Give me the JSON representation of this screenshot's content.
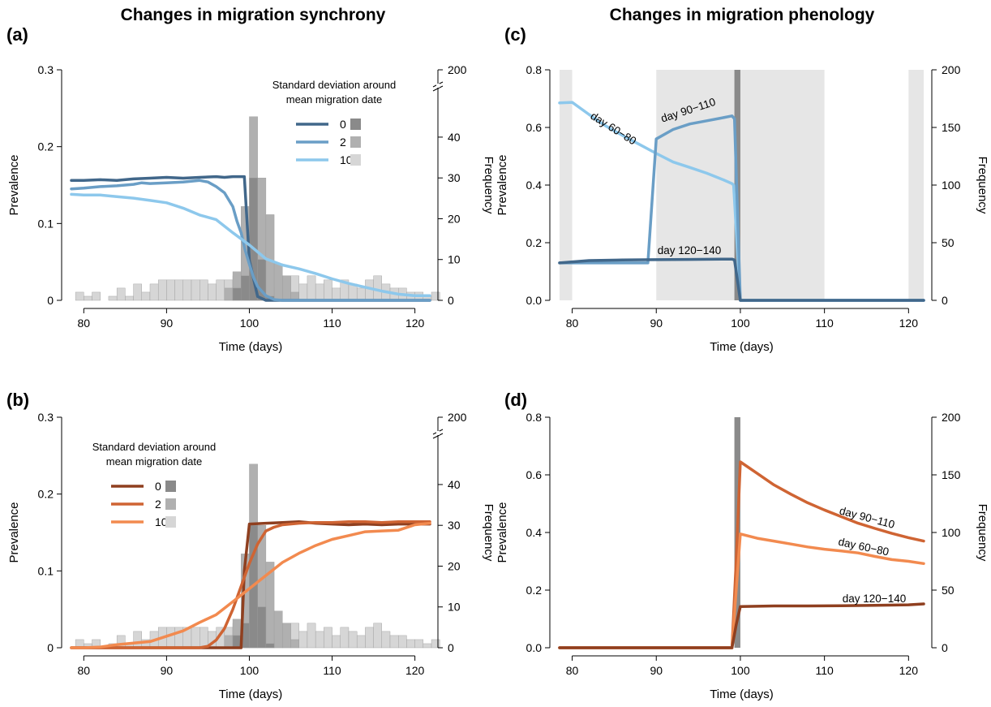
{
  "titles": {
    "left": "Changes in migration synchrony",
    "right": "Changes in migration phenology"
  },
  "colors": {
    "blue_dark": "#41678a",
    "blue_mid": "#6a9ec6",
    "blue_light": "#8dc8ec",
    "orange_dark": "#8f3f1f",
    "orange_mid": "#cf6433",
    "orange_light": "#f28a4f",
    "hist_dark": "#8a8a8a",
    "hist_mid": "#b0b0b0",
    "hist_light": "#d6d6d6",
    "shade": "#e6e6e6"
  },
  "chart_data": [
    {
      "id": "a",
      "panel_label": "(a)",
      "type": "line",
      "xlabel": "Time (days)",
      "ylabel": "Prevalence",
      "y2label": "Frequency",
      "xlim": [
        78.5,
        121.8
      ],
      "ylim": [
        0,
        0.3
      ],
      "xticks": [
        "80",
        "90",
        "100",
        "110",
        "120"
      ],
      "yticks": [
        "0",
        "0.1",
        "0.2",
        "0.3"
      ],
      "y2ticks": [
        "0",
        "10",
        "20",
        "30",
        "40",
        "200"
      ],
      "legend": {
        "title_line1": "Standard deviation around",
        "title_line2": "mean migration date",
        "entries": [
          "0",
          "2",
          "10"
        ]
      },
      "histograms": [
        {
          "name": "10",
          "values": [
            2,
            1,
            2,
            0,
            1,
            3,
            1,
            4,
            2,
            4,
            5,
            5,
            5,
            5,
            5,
            5,
            4,
            5,
            5,
            6,
            4,
            5,
            5,
            5,
            3,
            6,
            6,
            4,
            6,
            4,
            5,
            3,
            5,
            4,
            3,
            5,
            6,
            4,
            3,
            3,
            2,
            2,
            1,
            2
          ]
        },
        {
          "name": "2",
          "values": [
            0,
            0,
            0,
            0,
            0,
            0,
            0,
            0,
            0,
            0,
            0,
            0,
            0,
            0,
            0,
            0,
            0,
            0,
            3,
            7,
            23,
            45,
            30,
            21,
            9,
            6,
            2,
            0,
            0,
            0,
            0,
            0,
            0,
            0,
            0,
            0,
            0,
            0,
            0,
            0,
            0,
            0,
            0,
            0
          ]
        },
        {
          "name": "0",
          "values": [
            0,
            0,
            0,
            0,
            0,
            0,
            0,
            0,
            0,
            0,
            0,
            0,
            0,
            0,
            0,
            0,
            0,
            0,
            0,
            3,
            6,
            30,
            10,
            1,
            0,
            0,
            0,
            0,
            0,
            0,
            0,
            0,
            0,
            0,
            0,
            0,
            0,
            0,
            0,
            0,
            0,
            0,
            0,
            0
          ]
        }
      ],
      "series": [
        {
          "name": "0",
          "x": [
            78.5,
            80,
            82,
            84,
            86,
            88,
            90,
            92,
            94,
            96,
            97,
            98,
            99,
            99.4,
            100,
            101,
            102,
            103,
            104,
            121.8
          ],
          "y": [
            0.156,
            0.156,
            0.157,
            0.156,
            0.158,
            0.159,
            0.16,
            0.159,
            0.16,
            0.161,
            0.16,
            0.161,
            0.161,
            0.161,
            0.052,
            0.005,
            0,
            0,
            0,
            0
          ]
        },
        {
          "name": "2",
          "x": [
            78.5,
            80,
            82,
            84,
            86,
            87,
            88,
            90,
            92,
            94,
            95,
            96,
            97,
            98,
            98.5,
            99,
            99.5,
            100,
            100.5,
            101,
            102,
            103,
            104,
            121.8
          ],
          "y": [
            0.145,
            0.146,
            0.148,
            0.149,
            0.151,
            0.153,
            0.152,
            0.153,
            0.154,
            0.156,
            0.154,
            0.148,
            0.14,
            0.122,
            0.103,
            0.088,
            0.065,
            0.047,
            0.03,
            0.018,
            0.006,
            0.001,
            0,
            0
          ]
        },
        {
          "name": "10",
          "x": [
            78.5,
            80,
            82,
            84,
            86,
            88,
            90,
            92,
            94,
            96,
            98,
            100,
            102,
            104,
            106,
            108,
            110,
            112,
            114,
            116,
            118,
            120,
            121.8
          ],
          "y": [
            0.138,
            0.137,
            0.137,
            0.135,
            0.133,
            0.13,
            0.127,
            0.12,
            0.111,
            0.105,
            0.088,
            0.072,
            0.054,
            0.046,
            0.041,
            0.035,
            0.028,
            0.022,
            0.017,
            0.012,
            0.008,
            0.006,
            0.006
          ]
        }
      ]
    },
    {
      "id": "b",
      "panel_label": "(b)",
      "type": "line",
      "xlabel": "Time (days)",
      "ylabel": "Prevalence",
      "y2label": "Frequency",
      "xlim": [
        78.5,
        121.8
      ],
      "ylim": [
        0,
        0.3
      ],
      "xticks": [
        "80",
        "90",
        "100",
        "110",
        "120"
      ],
      "yticks": [
        "0",
        "0.1",
        "0.2",
        "0.3"
      ],
      "y2ticks": [
        "0",
        "10",
        "20",
        "30",
        "40",
        "200"
      ],
      "legend": {
        "title_line1": "Standard deviation around",
        "title_line2": "mean migration date",
        "entries": [
          "0",
          "2",
          "10"
        ]
      },
      "histograms": [
        {
          "name": "10",
          "values": [
            2,
            1,
            2,
            0,
            1,
            3,
            1,
            4,
            2,
            4,
            5,
            5,
            5,
            5,
            5,
            5,
            4,
            5,
            5,
            6,
            4,
            5,
            5,
            5,
            3,
            6,
            6,
            4,
            6,
            4,
            5,
            3,
            5,
            4,
            3,
            5,
            6,
            4,
            3,
            3,
            2,
            2,
            1,
            2
          ]
        },
        {
          "name": "2",
          "values": [
            0,
            0,
            0,
            0,
            0,
            0,
            0,
            0,
            0,
            0,
            0,
            0,
            0,
            0,
            0,
            0,
            0,
            0,
            3,
            7,
            23,
            45,
            30,
            21,
            9,
            6,
            2,
            0,
            0,
            0,
            0,
            0,
            0,
            0,
            0,
            0,
            0,
            0,
            0,
            0,
            0,
            0,
            0,
            0
          ]
        },
        {
          "name": "0",
          "values": [
            0,
            0,
            0,
            0,
            0,
            0,
            0,
            0,
            0,
            0,
            0,
            0,
            0,
            0,
            0,
            0,
            0,
            0,
            0,
            3,
            6,
            30,
            10,
            1,
            0,
            0,
            0,
            0,
            0,
            0,
            0,
            0,
            0,
            0,
            0,
            0,
            0,
            0,
            0,
            0,
            0,
            0,
            0,
            0
          ]
        }
      ],
      "series": [
        {
          "name": "0",
          "x": [
            78.5,
            99,
            99.4,
            100,
            102,
            104,
            106,
            108,
            110,
            112,
            114,
            116,
            118,
            120,
            121.8
          ],
          "y": [
            0,
            0,
            0.1,
            0.161,
            0.162,
            0.163,
            0.164,
            0.162,
            0.161,
            0.16,
            0.161,
            0.16,
            0.161,
            0.161,
            0.161
          ]
        },
        {
          "name": "2",
          "x": [
            78.5,
            94,
            95,
            96,
            97,
            98,
            99,
            100,
            101,
            102,
            103,
            104,
            106,
            108,
            110,
            112,
            114,
            116,
            118,
            120,
            121.8
          ],
          "y": [
            0,
            0,
            0.002,
            0.01,
            0.025,
            0.05,
            0.08,
            0.11,
            0.135,
            0.152,
            0.157,
            0.16,
            0.162,
            0.163,
            0.163,
            0.164,
            0.164,
            0.163,
            0.164,
            0.164,
            0.164
          ]
        },
        {
          "name": "10",
          "x": [
            78.5,
            80,
            82,
            84,
            86,
            88,
            90,
            92,
            94,
            96,
            98,
            100,
            102,
            104,
            106,
            108,
            110,
            112,
            114,
            116,
            118,
            120,
            121.8
          ],
          "y": [
            0,
            0,
            0.001,
            0.004,
            0.006,
            0.008,
            0.015,
            0.022,
            0.033,
            0.043,
            0.06,
            0.077,
            0.094,
            0.111,
            0.123,
            0.133,
            0.141,
            0.146,
            0.151,
            0.152,
            0.153,
            0.16,
            0.162
          ]
        }
      ]
    },
    {
      "id": "c",
      "panel_label": "(c)",
      "type": "line",
      "xlabel": "Time (days)",
      "ylabel": "Prevalence",
      "y2label": "Frequency",
      "xlim": [
        78.5,
        121.8
      ],
      "ylim": [
        0,
        0.8
      ],
      "xticks": [
        "80",
        "90",
        "100",
        "110",
        "120"
      ],
      "yticks": [
        "0.0",
        "0.2",
        "0.4",
        "0.6",
        "0.8"
      ],
      "y2ticks": [
        "0",
        "50",
        "100",
        "150",
        "200"
      ],
      "shaded_periods": [
        [
          78.5,
          80
        ],
        [
          90,
          110
        ],
        [
          120,
          121.8
        ]
      ],
      "dark_band": [
        99,
        100
      ],
      "labels": [
        "day 60−80",
        "day 90−110",
        "day 120−140"
      ],
      "series": [
        {
          "name": "day 60−80",
          "x": [
            78.5,
            80,
            82,
            84,
            86,
            88,
            90,
            92,
            94,
            96,
            98,
            99,
            99.2,
            100,
            121.8
          ],
          "y": [
            0.685,
            0.687,
            0.645,
            0.605,
            0.572,
            0.541,
            0.51,
            0.48,
            0.461,
            0.441,
            0.418,
            0.405,
            0.4,
            0,
            0
          ]
        },
        {
          "name": "day 90−110",
          "x": [
            78.5,
            89,
            90,
            92,
            94,
            96,
            98,
            99,
            99.3,
            100,
            121.8
          ],
          "y": [
            0.13,
            0.13,
            0.56,
            0.593,
            0.612,
            0.623,
            0.634,
            0.64,
            0.63,
            0,
            0
          ]
        },
        {
          "name": "day 120−140",
          "x": [
            78.5,
            82,
            86,
            90,
            94,
            98,
            99,
            99.3,
            100,
            121.8
          ],
          "y": [
            0.13,
            0.138,
            0.14,
            0.141,
            0.142,
            0.143,
            0.143,
            0.14,
            0,
            0
          ]
        }
      ]
    },
    {
      "id": "d",
      "panel_label": "(d)",
      "type": "line",
      "xlabel": "Time (days)",
      "ylabel": "Prevalence",
      "y2label": "Frequency",
      "xlim": [
        78.5,
        121.8
      ],
      "ylim": [
        0,
        0.8
      ],
      "xticks": [
        "80",
        "90",
        "100",
        "110",
        "120"
      ],
      "yticks": [
        "0.0",
        "0.2",
        "0.4",
        "0.6",
        "0.8"
      ],
      "y2ticks": [
        "0",
        "50",
        "100",
        "150",
        "200"
      ],
      "dark_band": [
        99,
        100
      ],
      "labels": [
        "day 90−110",
        "day 60−80",
        "day 120−140"
      ],
      "series": [
        {
          "name": "day 90−110",
          "x": [
            78.5,
            99,
            99.5,
            100,
            102,
            104,
            106,
            108,
            110,
            112,
            114,
            116,
            118,
            120,
            121.8
          ],
          "y": [
            0,
            0,
            0.3,
            0.645,
            0.605,
            0.565,
            0.533,
            0.503,
            0.478,
            0.455,
            0.432,
            0.414,
            0.397,
            0.382,
            0.37
          ]
        },
        {
          "name": "day 60−80",
          "x": [
            78.5,
            99,
            99.5,
            100,
            102,
            104,
            106,
            108,
            110,
            112,
            114,
            116,
            118,
            120,
            121.8
          ],
          "y": [
            0,
            0,
            0.2,
            0.395,
            0.38,
            0.37,
            0.36,
            0.35,
            0.342,
            0.336,
            0.329,
            0.317,
            0.306,
            0.3,
            0.292
          ]
        },
        {
          "name": "day 120−140",
          "x": [
            78.5,
            99,
            99.5,
            100,
            104,
            108,
            112,
            116,
            120,
            121.8
          ],
          "y": [
            0,
            0,
            0.08,
            0.143,
            0.145,
            0.145,
            0.146,
            0.147,
            0.149,
            0.152
          ]
        }
      ]
    }
  ]
}
